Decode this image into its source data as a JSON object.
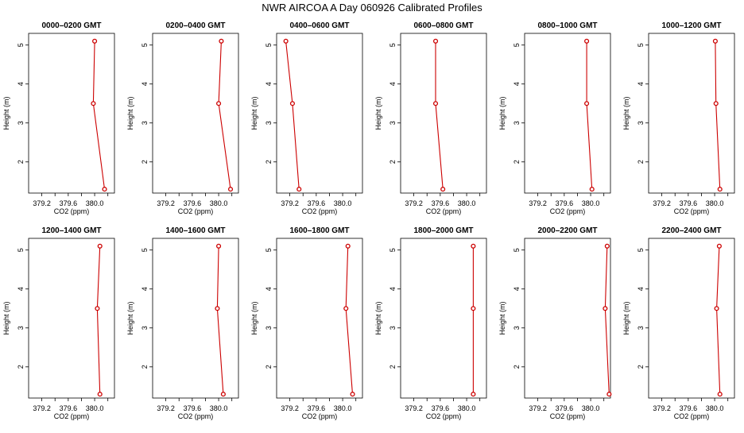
{
  "figure": {
    "title": "NWR AIRCOA A  Day 060926  Calibrated Profiles"
  },
  "chart_data": [
    {
      "type": "line",
      "title": "0000–0200 GMT",
      "xlabel": "CO2 (ppm)",
      "ylabel": "Height (m)",
      "xlim": [
        379.0,
        380.3
      ],
      "ylim": [
        1.2,
        5.3
      ],
      "xticks": [
        "379.2",
        "379.6",
        "380.0"
      ],
      "yticks": [
        "2",
        "3",
        "4",
        "5"
      ],
      "x": [
        380.15,
        379.98,
        380.0
      ],
      "y": [
        1.3,
        3.5,
        5.1
      ]
    },
    {
      "type": "line",
      "title": "0200–0400 GMT",
      "xlabel": "CO2 (ppm)",
      "ylabel": "Height (m)",
      "xlim": [
        379.0,
        380.3
      ],
      "ylim": [
        1.2,
        5.3
      ],
      "xticks": [
        "379.2",
        "379.6",
        "380.0"
      ],
      "yticks": [
        "2",
        "3",
        "4",
        "5"
      ],
      "x": [
        380.18,
        380.0,
        380.04
      ],
      "y": [
        1.3,
        3.5,
        5.1
      ]
    },
    {
      "type": "line",
      "title": "0400–0600 GMT",
      "xlabel": "CO2 (ppm)",
      "ylabel": "Height (m)",
      "xlim": [
        379.0,
        380.3
      ],
      "ylim": [
        1.2,
        5.3
      ],
      "xticks": [
        "379.2",
        "379.6",
        "380.0"
      ],
      "yticks": [
        "2",
        "3",
        "4",
        "5"
      ],
      "x": [
        379.34,
        379.24,
        379.14
      ],
      "y": [
        1.3,
        3.5,
        5.1
      ]
    },
    {
      "type": "line",
      "title": "0600–0800 GMT",
      "xlabel": "CO2 (ppm)",
      "ylabel": "Height (m)",
      "xlim": [
        379.0,
        380.3
      ],
      "ylim": [
        1.2,
        5.3
      ],
      "xticks": [
        "379.2",
        "379.6",
        "380.0"
      ],
      "yticks": [
        "2",
        "3",
        "4",
        "5"
      ],
      "x": [
        379.64,
        379.53,
        379.53
      ],
      "y": [
        1.3,
        3.5,
        5.1
      ]
    },
    {
      "type": "line",
      "title": "0800–1000 GMT",
      "xlabel": "CO2 (ppm)",
      "ylabel": "Height (m)",
      "xlim": [
        379.0,
        380.3
      ],
      "ylim": [
        1.2,
        5.3
      ],
      "xticks": [
        "379.2",
        "379.6",
        "380.0"
      ],
      "yticks": [
        "2",
        "3",
        "4",
        "5"
      ],
      "x": [
        380.02,
        379.94,
        379.94
      ],
      "y": [
        1.3,
        3.5,
        5.1
      ]
    },
    {
      "type": "line",
      "title": "1000–1200 GMT",
      "xlabel": "CO2 (ppm)",
      "ylabel": "Height (m)",
      "xlim": [
        379.0,
        380.3
      ],
      "ylim": [
        1.2,
        5.3
      ],
      "xticks": [
        "379.2",
        "379.6",
        "380.0"
      ],
      "yticks": [
        "2",
        "3",
        "4",
        "5"
      ],
      "x": [
        380.08,
        380.02,
        380.01
      ],
      "y": [
        1.3,
        3.5,
        5.1
      ]
    },
    {
      "type": "line",
      "title": "1200–1400 GMT",
      "xlabel": "CO2 (ppm)",
      "ylabel": "Height (m)",
      "xlim": [
        379.0,
        380.3
      ],
      "ylim": [
        1.2,
        5.3
      ],
      "xticks": [
        "379.2",
        "379.6",
        "380.0"
      ],
      "yticks": [
        "2",
        "3",
        "4",
        "5"
      ],
      "x": [
        380.08,
        380.04,
        380.08
      ],
      "y": [
        1.3,
        3.5,
        5.1
      ]
    },
    {
      "type": "line",
      "title": "1400–1600 GMT",
      "xlabel": "CO2 (ppm)",
      "ylabel": "Height (m)",
      "xlim": [
        379.0,
        380.3
      ],
      "ylim": [
        1.2,
        5.3
      ],
      "xticks": [
        "379.2",
        "379.6",
        "380.0"
      ],
      "yticks": [
        "2",
        "3",
        "4",
        "5"
      ],
      "x": [
        380.07,
        379.98,
        380.0
      ],
      "y": [
        1.3,
        3.5,
        5.1
      ]
    },
    {
      "type": "line",
      "title": "1600–1800 GMT",
      "xlabel": "CO2 (ppm)",
      "ylabel": "Height (m)",
      "xlim": [
        379.0,
        380.3
      ],
      "ylim": [
        1.2,
        5.3
      ],
      "xticks": [
        "379.2",
        "379.6",
        "380.0"
      ],
      "yticks": [
        "2",
        "3",
        "4",
        "5"
      ],
      "x": [
        380.15,
        380.05,
        380.08
      ],
      "y": [
        1.3,
        3.5,
        5.1
      ]
    },
    {
      "type": "line",
      "title": "1800–2000 GMT",
      "xlabel": "CO2 (ppm)",
      "ylabel": "Height (m)",
      "xlim": [
        379.0,
        380.3
      ],
      "ylim": [
        1.2,
        5.3
      ],
      "xticks": [
        "379.2",
        "379.6",
        "380.0"
      ],
      "yticks": [
        "2",
        "3",
        "4",
        "5"
      ],
      "x": [
        380.1,
        380.1,
        380.1
      ],
      "y": [
        1.3,
        3.5,
        5.1
      ]
    },
    {
      "type": "line",
      "title": "2000–2200 GMT",
      "xlabel": "CO2 (ppm)",
      "ylabel": "Height (m)",
      "xlim": [
        379.0,
        380.3
      ],
      "ylim": [
        1.2,
        5.3
      ],
      "xticks": [
        "379.2",
        "379.6",
        "380.0"
      ],
      "yticks": [
        "2",
        "3",
        "4",
        "5"
      ],
      "x": [
        380.28,
        380.22,
        380.25
      ],
      "y": [
        1.3,
        3.5,
        5.1
      ]
    },
    {
      "type": "line",
      "title": "2200–2400 GMT",
      "xlabel": "CO2 (ppm)",
      "ylabel": "Height (m)",
      "xlim": [
        379.0,
        380.3
      ],
      "ylim": [
        1.2,
        5.3
      ],
      "xticks": [
        "379.2",
        "379.6",
        "380.0"
      ],
      "yticks": [
        "2",
        "3",
        "4",
        "5"
      ],
      "x": [
        380.08,
        380.03,
        380.07
      ],
      "y": [
        1.3,
        3.5,
        5.1
      ]
    }
  ]
}
